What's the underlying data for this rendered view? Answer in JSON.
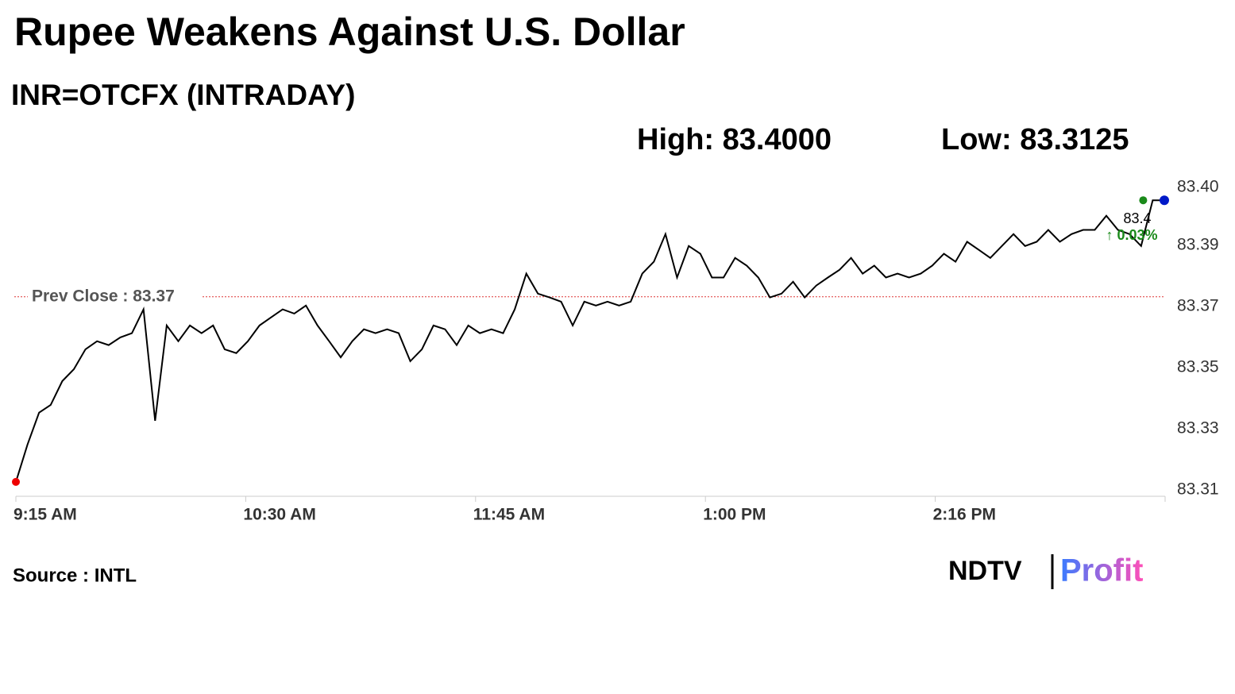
{
  "chart_data": {
    "type": "line",
    "title": "Rupee Weakens Against U.S. Dollar",
    "subtitle": "INR=OTCFX (INTRADAY)",
    "high_label": "High: 83.4000",
    "low_label": "Low: 83.3125",
    "prev_close_label": "Prev Close : 83.37",
    "prev_close": 83.37,
    "last_value_label": "83.4",
    "change_label": "↑ 0.03%",
    "source": "Source : INTL",
    "logo": [
      "NDTV",
      "Profit"
    ],
    "color": "#000000",
    "x_tick_labels": [
      "9:15 AM",
      "10:30 AM",
      "11:45 AM",
      "1:00 PM",
      "2:16 PM",
      null
    ],
    "ylim": [
      83.31,
      83.404
    ],
    "yticks": [
      {
        "value": 83.31,
        "label": "83.31"
      },
      {
        "value": 83.329,
        "label": "83.33"
      },
      {
        "value": 83.348,
        "label": "83.35"
      },
      {
        "value": 83.367,
        "label": "83.37"
      },
      {
        "value": 83.386,
        "label": "83.39"
      },
      {
        "value": 83.404,
        "label": "83.40"
      }
    ],
    "values": [
      83.3125,
      83.3241,
      83.334,
      83.3364,
      83.3438,
      83.3475,
      83.3537,
      83.3562,
      83.355,
      83.3574,
      83.3587,
      83.3661,
      83.3315,
      83.3611,
      83.3562,
      83.3611,
      83.3587,
      83.3611,
      83.3537,
      83.3525,
      83.3562,
      83.3611,
      83.3636,
      83.3661,
      83.3648,
      83.3673,
      83.3611,
      83.3562,
      83.3512,
      83.3562,
      83.3599,
      83.3587,
      83.3599,
      83.3587,
      83.35,
      83.3537,
      83.3611,
      83.3599,
      83.355,
      83.3611,
      83.3587,
      83.3599,
      83.3587,
      83.3661,
      83.3772,
      83.371,
      83.3698,
      83.3685,
      83.3611,
      83.3685,
      83.3673,
      83.3685,
      83.3673,
      83.3685,
      83.3772,
      83.3809,
      83.3895,
      83.376,
      83.3858,
      83.3834,
      83.376,
      83.376,
      83.3821,
      83.3797,
      83.376,
      83.3698,
      83.371,
      83.3747,
      83.3698,
      83.3735,
      83.376,
      83.3784,
      83.3821,
      83.3772,
      83.3797,
      83.376,
      83.3772,
      83.376,
      83.3772,
      83.3797,
      83.3834,
      83.3809,
      83.3871,
      83.3846,
      83.3821,
      83.3858,
      83.3895,
      83.3858,
      83.3871,
      83.3908,
      83.3871,
      83.3895,
      83.3908,
      83.3908,
      83.3952,
      83.3908,
      83.3895,
      83.3858,
      83.4,
      83.4
    ]
  }
}
